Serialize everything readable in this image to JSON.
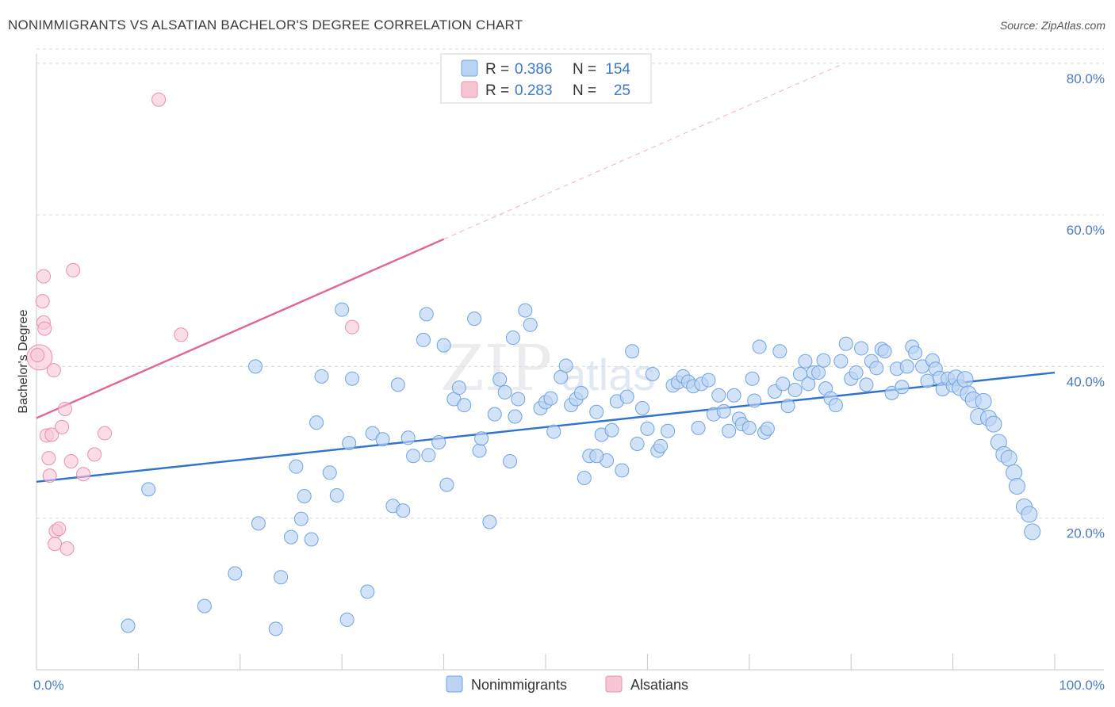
{
  "title": "NONIMMIGRANTS VS ALSATIAN BACHELOR'S DEGREE CORRELATION CHART",
  "source": "Source: ZipAtlas.com",
  "colors": {
    "blue": "#6fa3e3",
    "blue_fill": "#bcd4f3",
    "blue_line": "#2f73d0",
    "pink": "#ec8fab",
    "pink_fill": "#f7c6d5",
    "pink_line": "#e0678f"
  },
  "legend": {
    "rows": [
      {
        "r_label": "R =",
        "r_value": "0.386",
        "n_label": "N =",
        "n_value": "154"
      },
      {
        "r_label": "R =",
        "r_value": "0.283",
        "n_label": "N =",
        "n_value": "25"
      }
    ]
  },
  "bottom_legend": [
    "Nonimmigrants",
    "Alsatians"
  ],
  "watermark": {
    "zip": "ZIP",
    "atlas": "atlas"
  },
  "chart_data": {
    "type": "scatter",
    "title": "NONIMMIGRANTS VS ALSATIAN BACHELOR'S DEGREE CORRELATION CHART",
    "xlabel": "",
    "ylabel": "Bachelor's Degree",
    "xlim": [
      0,
      100
    ],
    "ylim": [
      0,
      82
    ],
    "x_tick_labels": [
      {
        "v": 0,
        "t": "0.0%"
      },
      {
        "v": 100,
        "t": "100.0%"
      }
    ],
    "y_tick_labels": [
      {
        "v": 20,
        "t": "20.0%"
      },
      {
        "v": 40,
        "t": "40.0%"
      },
      {
        "v": 60,
        "t": "60.0%"
      },
      {
        "v": 80,
        "t": "80.0%"
      }
    ],
    "grid": true,
    "legend_placement": "top-center",
    "series": [
      {
        "name": "Nonimmigrants",
        "r": 0.386,
        "n": 154,
        "trend": [
          [
            0,
            24.8
          ],
          [
            100,
            39.2
          ]
        ],
        "points": [
          [
            9,
            5.8
          ],
          [
            11,
            23.8
          ],
          [
            16.5,
            8.4
          ],
          [
            19.5,
            12.7
          ],
          [
            21.5,
            40
          ],
          [
            21.8,
            19.3
          ],
          [
            23.5,
            5.4
          ],
          [
            24,
            12.2
          ],
          [
            25,
            17.5
          ],
          [
            25.5,
            26.8
          ],
          [
            26,
            19.9
          ],
          [
            26.3,
            22.9
          ],
          [
            27,
            17.2
          ],
          [
            27.5,
            32.6
          ],
          [
            28,
            38.7
          ],
          [
            28.8,
            26
          ],
          [
            29.5,
            23
          ],
          [
            30,
            47.5
          ],
          [
            30.5,
            6.6
          ],
          [
            30.7,
            29.9
          ],
          [
            31,
            38.4
          ],
          [
            32.5,
            10.3
          ],
          [
            33,
            31.2
          ],
          [
            34,
            30.4
          ],
          [
            35,
            21.6
          ],
          [
            35.5,
            37.6
          ],
          [
            36,
            21
          ],
          [
            36.5,
            30.6
          ],
          [
            37,
            28.2
          ],
          [
            38,
            43.5
          ],
          [
            38.3,
            46.9
          ],
          [
            38.5,
            28.3
          ],
          [
            39.5,
            30
          ],
          [
            40,
            42.8
          ],
          [
            40.3,
            24.4
          ],
          [
            41,
            35.7
          ],
          [
            41.5,
            37.2
          ],
          [
            42,
            34.9
          ],
          [
            43,
            46.3
          ],
          [
            43.5,
            28.9
          ],
          [
            43.7,
            30.5
          ],
          [
            44.5,
            19.5
          ],
          [
            45,
            33.7
          ],
          [
            45.5,
            38.3
          ],
          [
            46,
            36.6
          ],
          [
            46.5,
            27.5
          ],
          [
            46.8,
            43.8
          ],
          [
            47,
            33.4
          ],
          [
            47.3,
            35.7
          ],
          [
            48,
            47.4
          ],
          [
            48.5,
            45.5
          ],
          [
            49.5,
            34.5
          ],
          [
            50,
            35.3
          ],
          [
            50.5,
            35.8
          ],
          [
            50.8,
            31.4
          ],
          [
            51.5,
            38.6
          ],
          [
            52,
            40.1
          ],
          [
            52.5,
            34.9
          ],
          [
            53,
            35.7
          ],
          [
            53.5,
            36.5
          ],
          [
            53.8,
            25.3
          ],
          [
            54.3,
            28.2
          ],
          [
            55,
            34
          ],
          [
            55.5,
            31
          ],
          [
            56,
            27.6
          ],
          [
            56.5,
            31.6
          ],
          [
            57,
            35.4
          ],
          [
            57.5,
            26.3
          ],
          [
            58,
            36
          ],
          [
            58.5,
            42
          ],
          [
            59,
            29.8
          ],
          [
            59.5,
            34.5
          ],
          [
            60,
            31.8
          ],
          [
            60.5,
            39
          ],
          [
            61,
            28.9
          ],
          [
            61.3,
            29.5
          ],
          [
            62,
            31.5
          ],
          [
            62.5,
            37.5
          ],
          [
            63,
            37.9
          ],
          [
            63.5,
            38.7
          ],
          [
            64,
            38
          ],
          [
            64.5,
            37.4
          ],
          [
            65,
            31.9
          ],
          [
            65.3,
            37.7
          ],
          [
            66,
            38.2
          ],
          [
            66.5,
            33.7
          ],
          [
            67,
            36.2
          ],
          [
            67.5,
            34.1
          ],
          [
            68,
            31.5
          ],
          [
            68.5,
            36.2
          ],
          [
            69,
            33.1
          ],
          [
            69.3,
            32.4
          ],
          [
            70,
            31.9
          ],
          [
            70.3,
            38.4
          ],
          [
            70.5,
            35.5
          ],
          [
            71,
            42.6
          ],
          [
            71.5,
            31.3
          ],
          [
            71.8,
            31.8
          ],
          [
            72.5,
            36.7
          ],
          [
            73,
            42
          ],
          [
            73.3,
            37.7
          ],
          [
            73.8,
            34.8
          ],
          [
            74.5,
            36.9
          ],
          [
            75,
            39
          ],
          [
            75.5,
            40.7
          ],
          [
            75.8,
            37.7
          ],
          [
            76.3,
            39.2
          ],
          [
            76.8,
            39.2
          ],
          [
            77.3,
            40.8
          ],
          [
            77.5,
            37.1
          ],
          [
            78,
            35.8
          ],
          [
            78.5,
            34.9
          ],
          [
            79,
            40.7
          ],
          [
            79.5,
            43
          ],
          [
            80,
            38.4
          ],
          [
            80.5,
            39.2
          ],
          [
            81,
            42.4
          ],
          [
            81.5,
            37.6
          ],
          [
            82,
            40.7
          ],
          [
            82.5,
            39.8
          ],
          [
            83,
            42.3
          ],
          [
            83.3,
            42
          ],
          [
            84,
            36.5
          ],
          [
            84.5,
            39.7
          ],
          [
            85,
            37.3
          ],
          [
            85.5,
            40
          ],
          [
            86,
            42.6
          ],
          [
            86.3,
            41.8
          ],
          [
            87,
            40
          ],
          [
            87.5,
            38.1
          ],
          [
            88,
            40.8
          ],
          [
            88.3,
            39.7
          ],
          [
            88.7,
            38.5
          ],
          [
            89,
            37
          ],
          [
            89.5,
            38.4
          ],
          [
            90,
            37.5
          ],
          [
            90.3,
            38.5
          ],
          [
            90.7,
            37.2
          ],
          [
            91.2,
            38.3
          ],
          [
            91.5,
            36.4
          ],
          [
            92,
            35.6
          ],
          [
            92.5,
            33.4
          ],
          [
            93,
            35.4
          ],
          [
            93.5,
            33.2
          ],
          [
            94,
            32.4
          ],
          [
            94.5,
            30
          ],
          [
            95,
            28.4
          ],
          [
            95.5,
            27.9
          ],
          [
            96,
            26
          ],
          [
            96.3,
            24.2
          ],
          [
            97,
            21.5
          ],
          [
            97.5,
            20.5
          ],
          [
            97.8,
            18.2
          ],
          [
            55,
            28.2
          ]
        ]
      },
      {
        "name": "Alsatians",
        "r": 0.283,
        "n": 25,
        "trend": [
          [
            0,
            33.2
          ],
          [
            40,
            56.8
          ]
        ],
        "trend_dashed": [
          [
            40,
            56.8
          ],
          [
            79,
            79.8
          ]
        ],
        "points": [
          [
            0.3,
            41.2
          ],
          [
            0.6,
            48.6
          ],
          [
            0.7,
            51.9
          ],
          [
            0.7,
            45.8
          ],
          [
            0.8,
            45
          ],
          [
            1,
            30.9
          ],
          [
            1.2,
            27.9
          ],
          [
            1.3,
            25.6
          ],
          [
            1.5,
            31
          ],
          [
            1.7,
            39.5
          ],
          [
            1.8,
            16.6
          ],
          [
            1.9,
            18.3
          ],
          [
            2.2,
            18.6
          ],
          [
            2.5,
            32
          ],
          [
            2.8,
            34.4
          ],
          [
            3,
            16
          ],
          [
            3.4,
            27.5
          ],
          [
            3.6,
            52.7
          ],
          [
            4.6,
            25.8
          ],
          [
            5.7,
            28.4
          ],
          [
            6.7,
            31.2
          ],
          [
            12,
            75.2
          ],
          [
            14.2,
            44.2
          ],
          [
            31,
            45.2
          ],
          [
            0.1,
            41.5
          ]
        ]
      }
    ]
  }
}
